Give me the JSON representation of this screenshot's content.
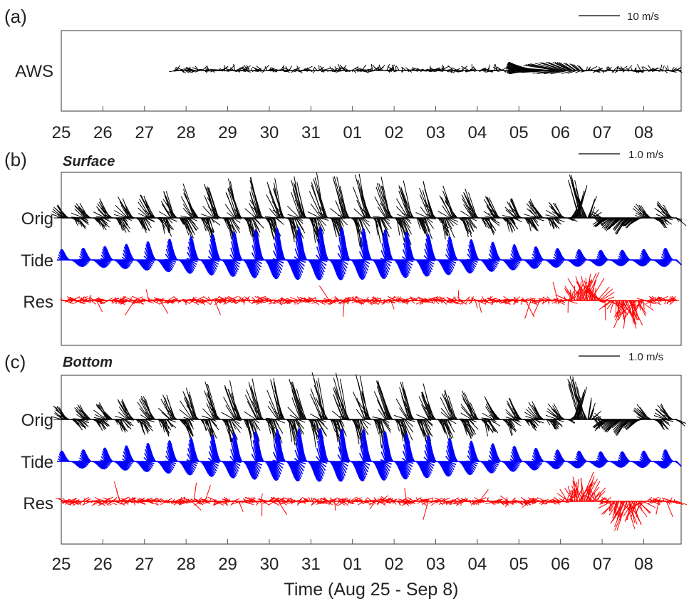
{
  "colors": {
    "orig": "#000000",
    "tide": "#0000ff",
    "res": "#ff0000",
    "axis": "#555555"
  },
  "chart_data": {
    "type": "stick-plot",
    "x_ticks": [
      "25",
      "26",
      "27",
      "28",
      "29",
      "30",
      "31",
      "01",
      "02",
      "03",
      "04",
      "05",
      "06",
      "07",
      "08"
    ],
    "x_range_days": [
      0,
      14.9
    ],
    "xlabel": "Time (Aug 25 - Sep 8)",
    "panels": [
      {
        "label": "(a)",
        "title": "",
        "scale_label": "10 m/s",
        "rows": [
          {
            "name": "AWS",
            "color_key": "orig",
            "start_day": 2.7,
            "end_day": 14.9,
            "peak_event": {
              "center_day": 11.7,
              "width_days": 0.9,
              "max_speed_ms": 10
            }
          }
        ]
      },
      {
        "label": "(b)",
        "title": "Surface",
        "scale_label": "1.0 m/s",
        "rows": [
          {
            "name": "Orig",
            "color_key": "orig",
            "start_day": 0.0,
            "end_day": 14.8
          },
          {
            "name": "Tide",
            "color_key": "tide",
            "start_day": 0.0,
            "end_day": 14.8
          },
          {
            "name": "Res",
            "color_key": "res",
            "start_day": 0.0,
            "end_day": 14.8,
            "events": [
              {
                "day": 12.6,
                "direction": "up"
              },
              {
                "day": 13.6,
                "direction": "down"
              }
            ]
          }
        ]
      },
      {
        "label": "(c)",
        "title": "Bottom",
        "scale_label": "1.0 m/s",
        "rows": [
          {
            "name": "Orig",
            "color_key": "orig",
            "start_day": 0.0,
            "end_day": 14.8
          },
          {
            "name": "Tide",
            "color_key": "tide",
            "start_day": 0.0,
            "end_day": 14.8
          },
          {
            "name": "Res",
            "color_key": "res",
            "start_day": 0.0,
            "end_day": 14.8,
            "events": [
              {
                "day": 12.5,
                "direction": "up"
              },
              {
                "day": 13.6,
                "direction": "down"
              }
            ]
          }
        ]
      }
    ]
  }
}
